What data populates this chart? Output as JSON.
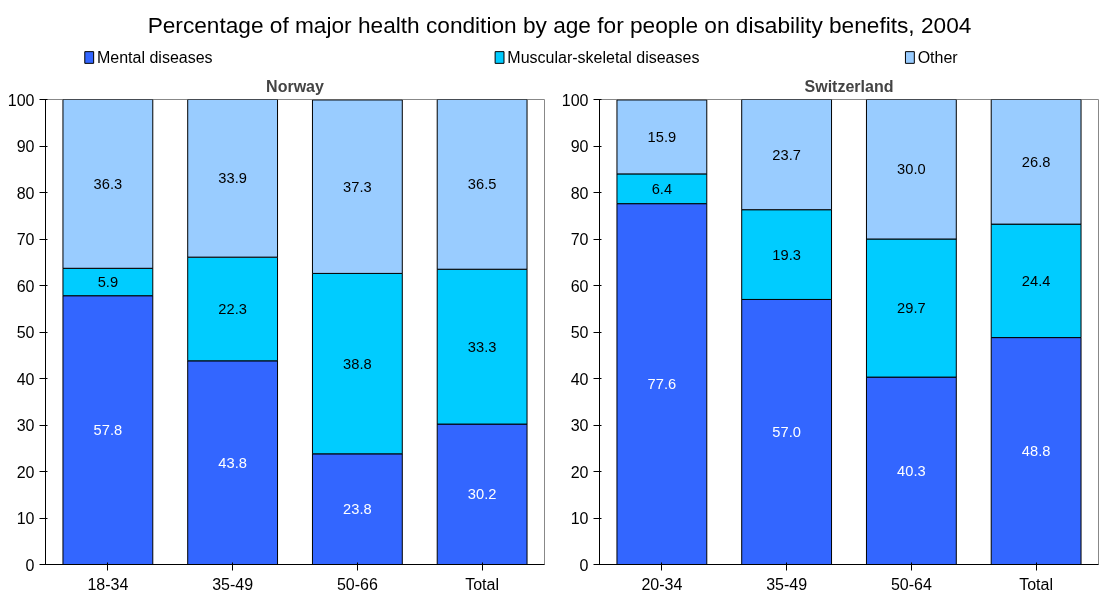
{
  "chart_data": [
    {
      "type": "bar",
      "title": "Percentage of major health condition by age for people on disability benefits, 2004",
      "subtitle": "Norway",
      "categories": [
        "18-34",
        "35-49",
        "50-66",
        "Total"
      ],
      "stacked": true,
      "ylim": [
        0,
        100
      ],
      "yticks": [
        0,
        10,
        20,
        30,
        40,
        50,
        60,
        70,
        80,
        90,
        100
      ],
      "grid": false,
      "data_labels": true,
      "legend": "top",
      "series": [
        {
          "name": "Mental diseases",
          "color": "#3366ff",
          "values": [
            57.8,
            43.8,
            23.8,
            30.2
          ]
        },
        {
          "name": "Muscular-skeletal diseases",
          "color": "#00ccff",
          "values": [
            5.9,
            22.3,
            38.8,
            33.3
          ]
        },
        {
          "name": "Other",
          "color": "#99ccff",
          "values": [
            36.3,
            33.9,
            37.3,
            36.5
          ]
        }
      ]
    },
    {
      "type": "bar",
      "subtitle": "Switzerland",
      "categories": [
        "20-34",
        "35-49",
        "50-64",
        "Total"
      ],
      "stacked": true,
      "ylim": [
        0,
        100
      ],
      "yticks": [
        0,
        10,
        20,
        30,
        40,
        50,
        60,
        70,
        80,
        90,
        100
      ],
      "grid": false,
      "data_labels": true,
      "series": [
        {
          "color": "#3366ff",
          "values": [
            77.6,
            57.0,
            40.3,
            48.8
          ],
          "value_labels": [
            "77.6",
            "57.0",
            "40.3",
            "48.8"
          ]
        },
        {
          "color": "#00ccff",
          "values": [
            6.4,
            19.3,
            29.7,
            24.4
          ]
        },
        {
          "color": "#99ccff",
          "values": [
            15.9,
            23.7,
            30.0,
            26.8
          ],
          "value_labels": [
            "15.9",
            "23.7",
            "30.0",
            "26.8"
          ]
        }
      ]
    }
  ]
}
